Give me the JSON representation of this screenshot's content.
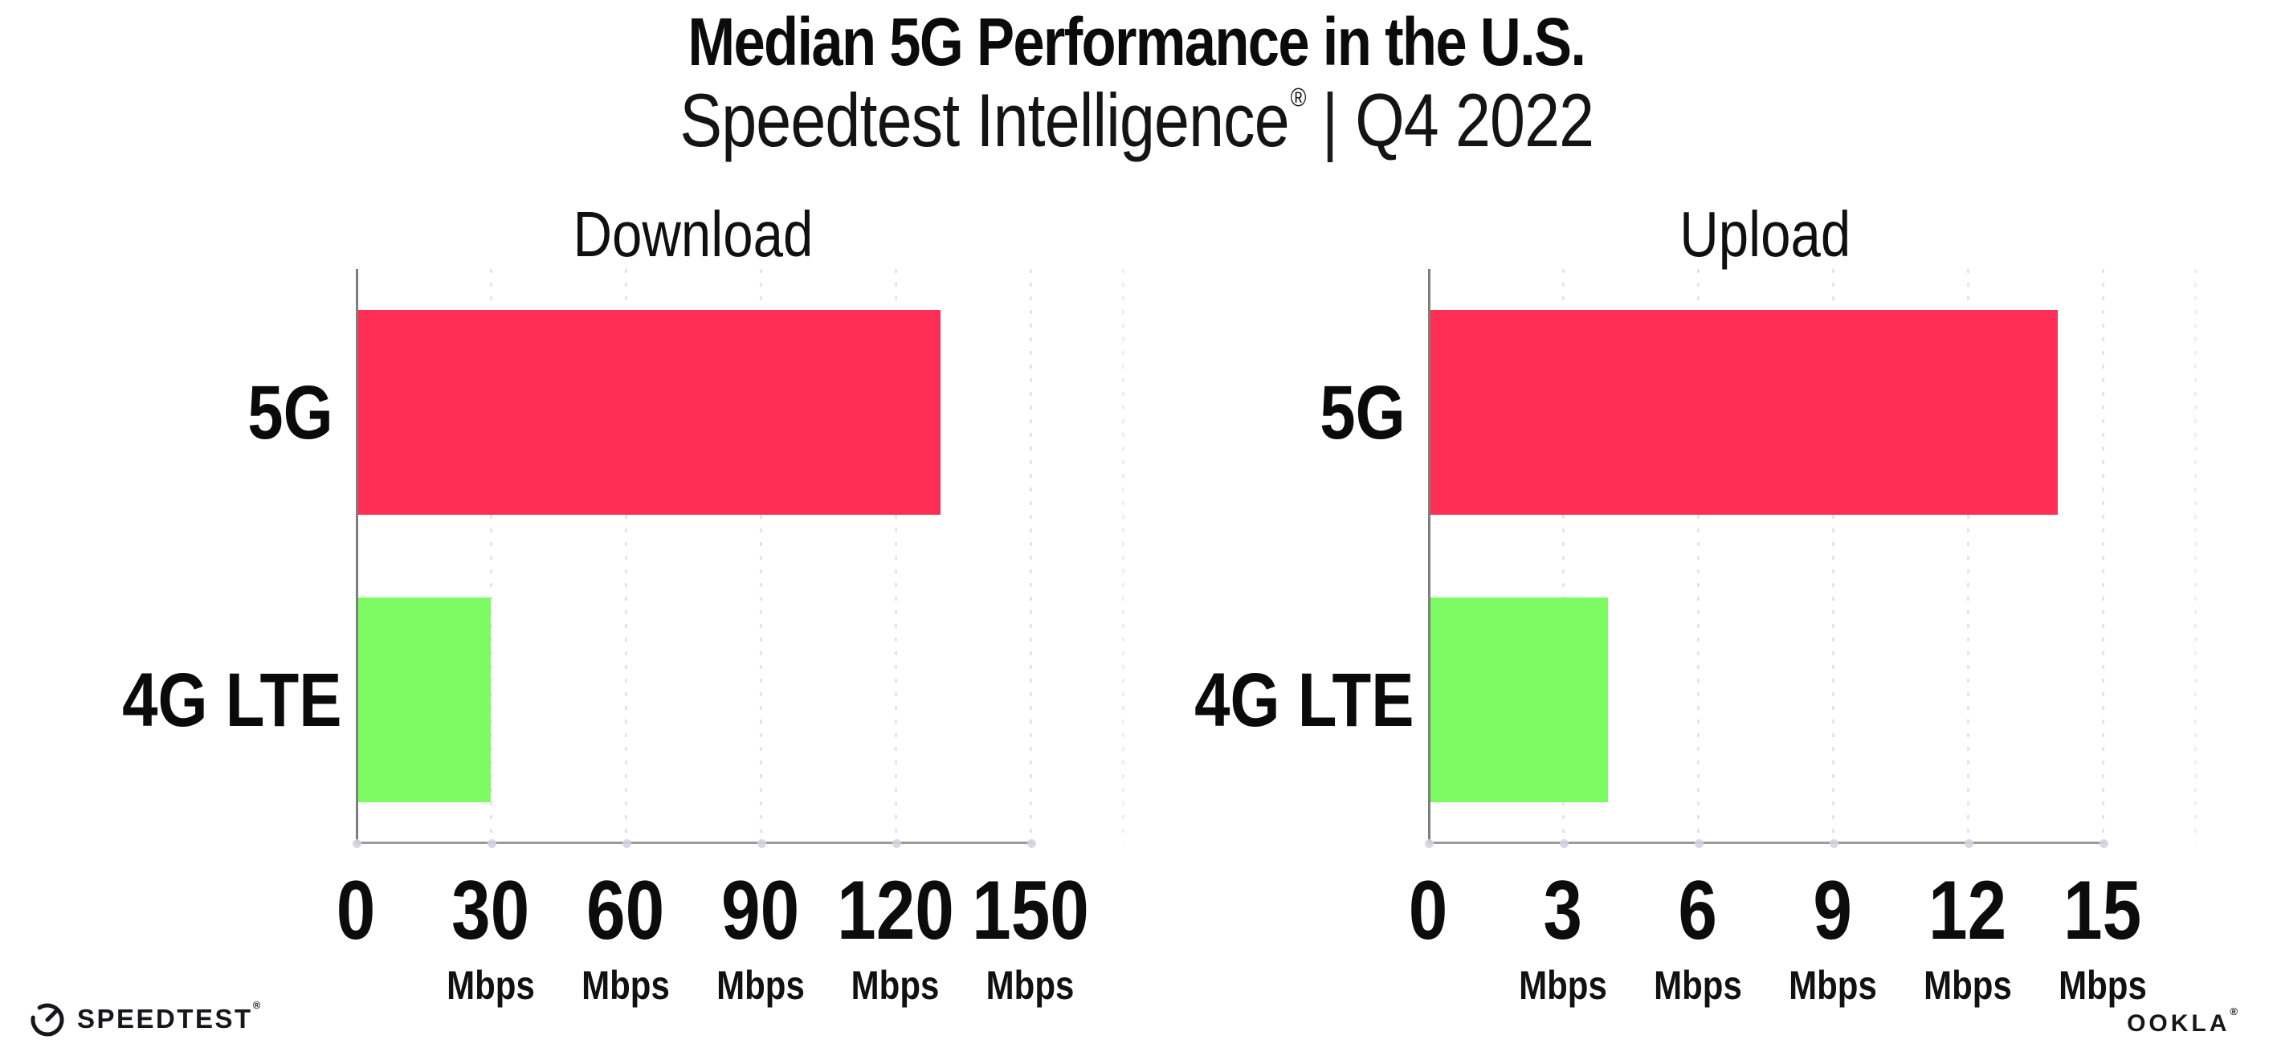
{
  "header": {
    "title": "Median 5G Performance in the U.S.",
    "subtitle": {
      "brand": "Speedtest Intelligence",
      "reg": "®",
      "separator": "|",
      "period": "Q4 2022"
    }
  },
  "chart_data": [
    {
      "type": "bar",
      "orientation": "horizontal",
      "title": "Download",
      "categories": [
        "5G",
        "4G LTE"
      ],
      "values": [
        130,
        30
      ],
      "unit": "Mbps",
      "xlim": [
        0,
        150
      ],
      "xticks": [
        0,
        30,
        60,
        90,
        120,
        150
      ],
      "tick_unit": "Mbps",
      "grid": "dotted-vertical",
      "legend": "none",
      "bar_colors": [
        "#FF2E54",
        "#7DFB63"
      ]
    },
    {
      "type": "bar",
      "orientation": "horizontal",
      "title": "Upload",
      "categories": [
        "5G",
        "4G LTE"
      ],
      "values": [
        14,
        4
      ],
      "unit": "Mbps",
      "xlim": [
        0,
        15
      ],
      "xticks": [
        0,
        3,
        6,
        9,
        12,
        15
      ],
      "tick_unit": "Mbps",
      "grid": "dotted-vertical",
      "legend": "none",
      "bar_colors": [
        "#FF2E54",
        "#7DFB63"
      ]
    }
  ],
  "footer": {
    "speedtest_logo_text": "SPEEDTEST",
    "speedtest_reg": "®",
    "ookla_logo_text": "OOKLA",
    "ookla_reg": "®"
  },
  "colors": {
    "bar_5g": "#FF2E54",
    "bar_4g_lte": "#7DFB63",
    "gridline": "#E4E4EC",
    "axis_line": "#9B9B9B",
    "y_spine": "#7E7E7E",
    "tick_dot": "#D2D5DF",
    "text": "#0D0D0D"
  }
}
